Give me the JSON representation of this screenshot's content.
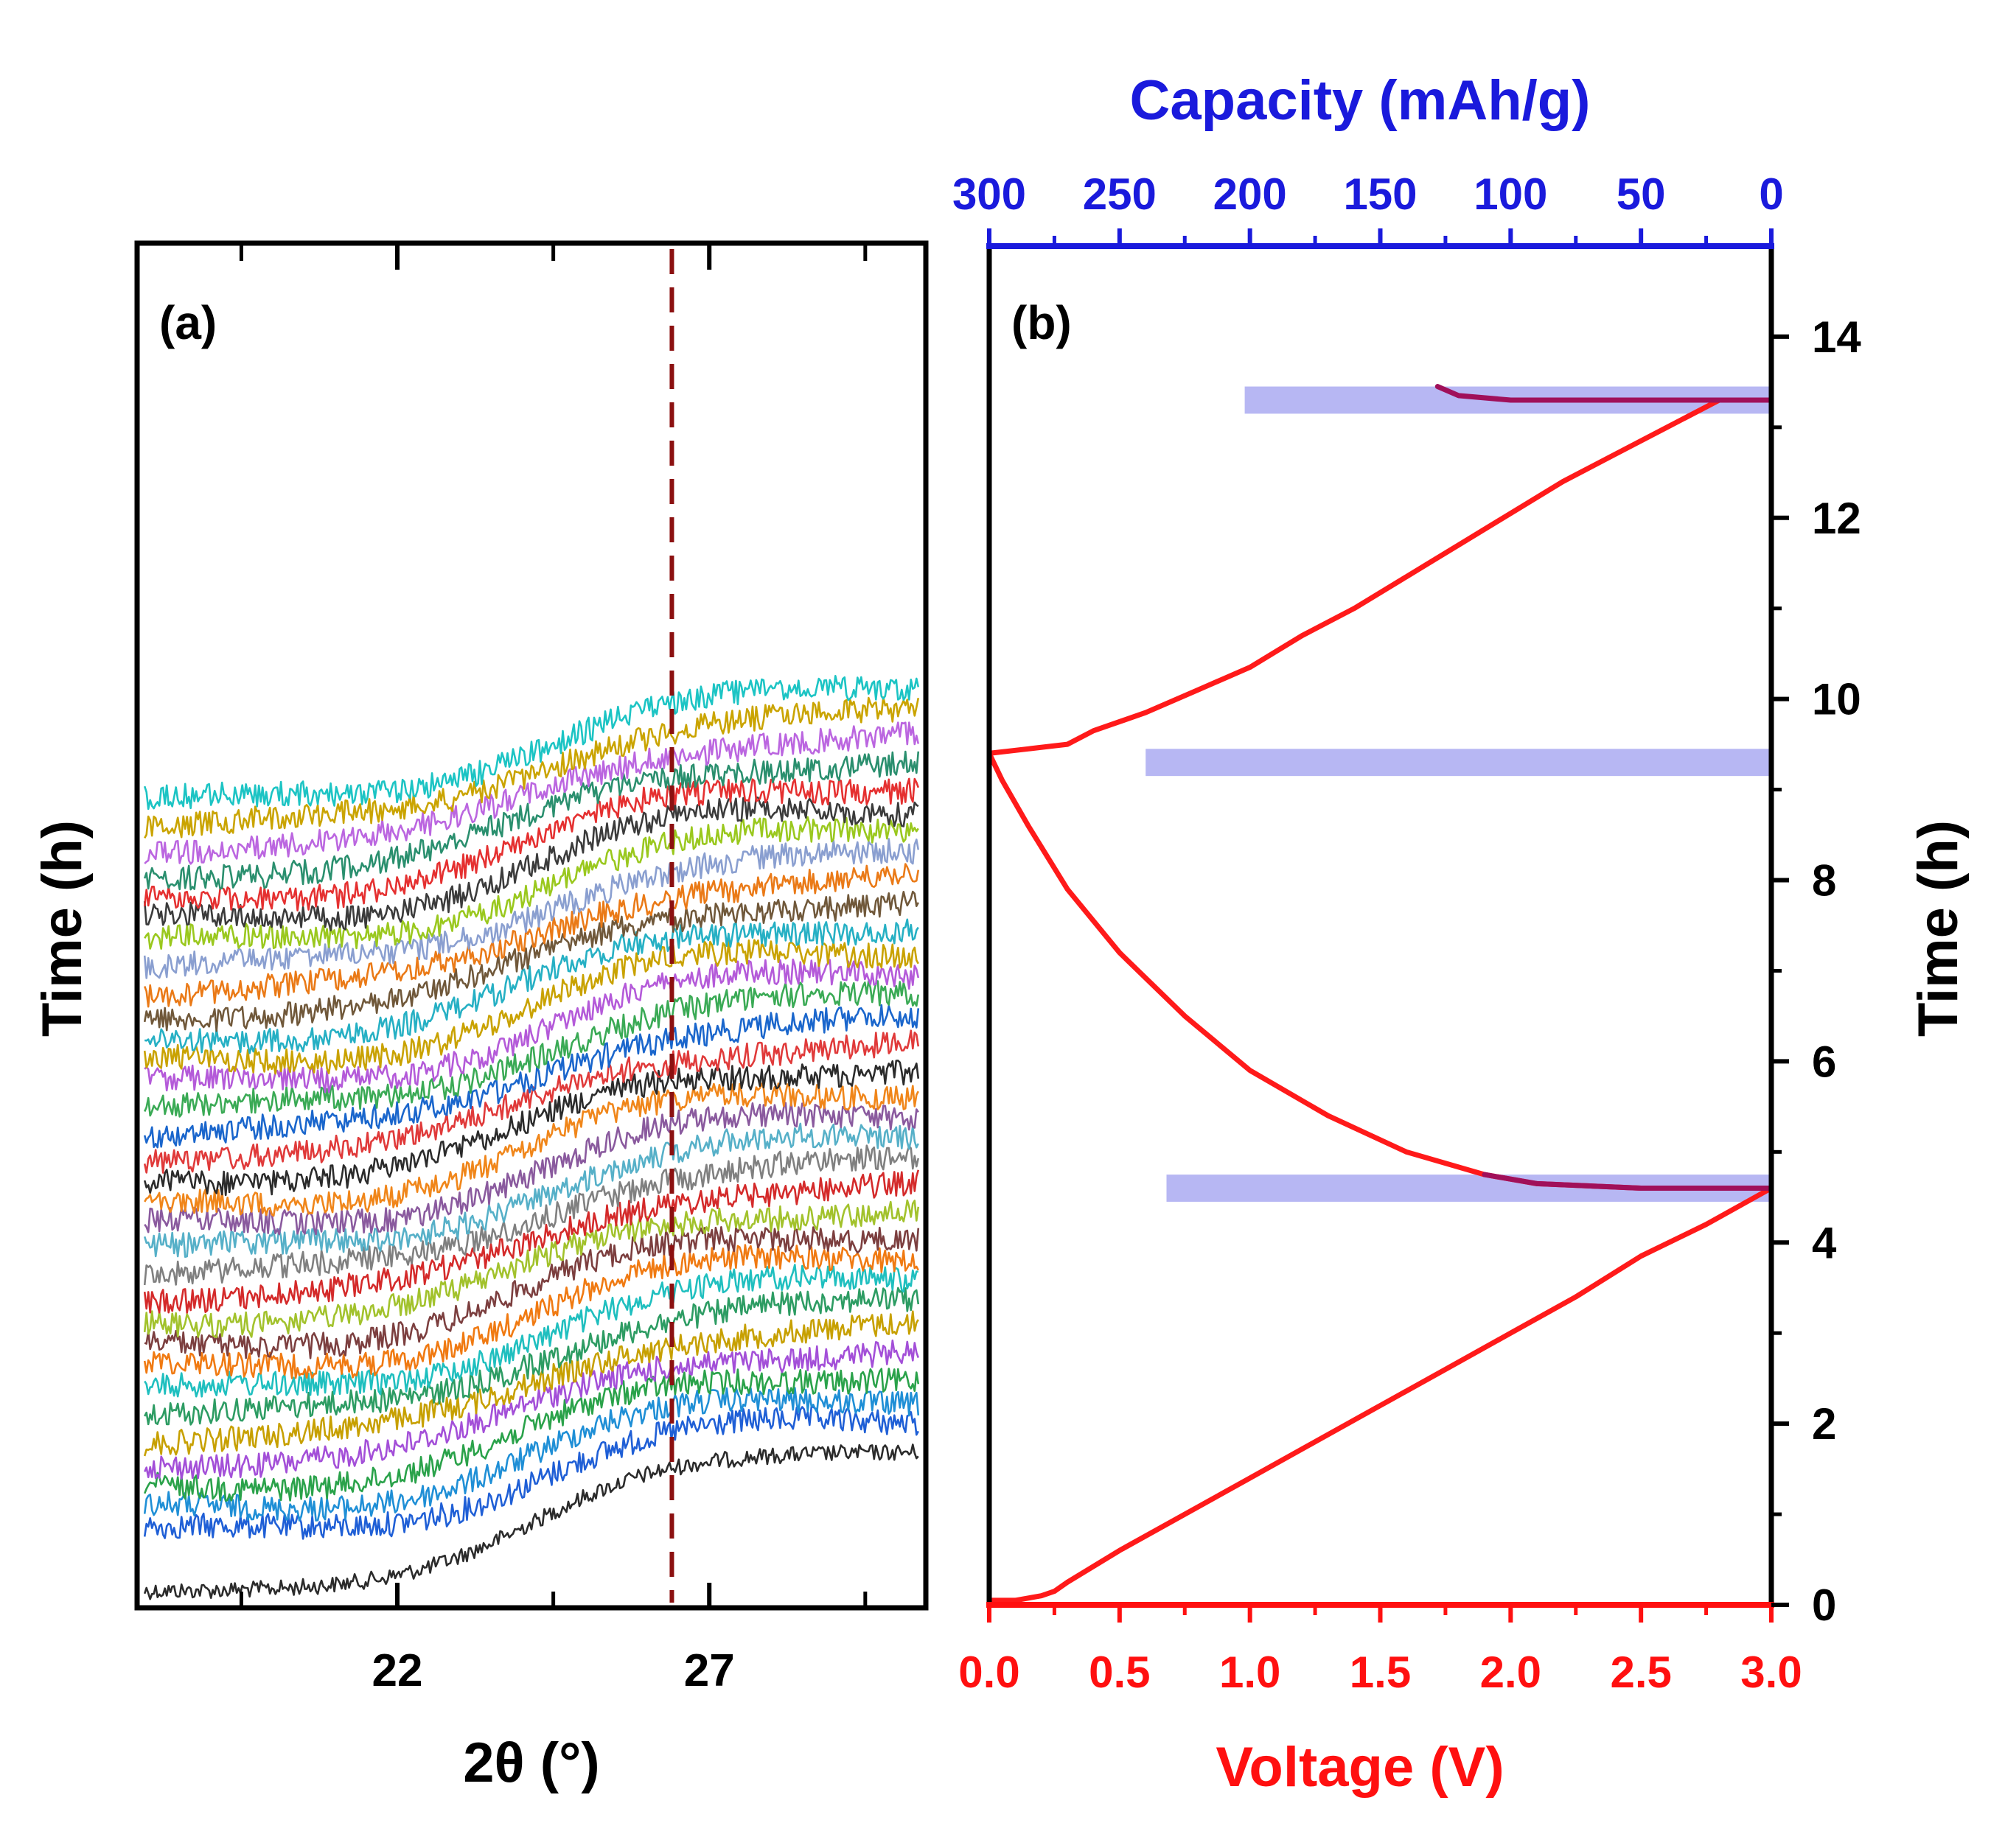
{
  "colors": {
    "axis": "#000000",
    "capacity_axis": "#1a1adc",
    "voltage_axis": "#ff1010",
    "voltage_curve": "#ff1a1a",
    "voltage_curve_hold": "#a0105a",
    "highlight_band": "#b7b7f3",
    "dashed_line": "#8b1010"
  },
  "chart_data": [
    {
      "panel_label": "(a)",
      "type": "line",
      "title": "",
      "xlabel": "2θ (°)",
      "ylabel": "Time (h)",
      "xlim": [
        17.9,
        30.4
      ],
      "xticks": [
        22,
        27
      ],
      "xticklabels": [
        "22",
        "27"
      ],
      "minor_xticks": [
        19.5,
        24.5,
        29.5
      ],
      "dashed_reference_x": 26.4,
      "series_description": "stacked in-situ XRD patterns, bottom to top in time order",
      "series_colors": [
        "#2b2b2b",
        "#1f5fd6",
        "#1f8fd6",
        "#2aa24a",
        "#a34fd8",
        "#c7a000",
        "#2d9c63",
        "#1fbfbf",
        "#f07a12",
        "#7c3f3f",
        "#a2c22c",
        "#d42a2a",
        "#808080",
        "#56b0c8",
        "#8a5a9e",
        "#f0861a",
        "#2b2b2b",
        "#e03a3a",
        "#1a66cc",
        "#3aaa55",
        "#b45ad9",
        "#c9a200",
        "#26b0c4",
        "#70583a",
        "#ea7a17",
        "#8a9fd0",
        "#9ac81e",
        "#3b3b3b",
        "#e53030",
        "#2a8f6e",
        "#bb66e0",
        "#caa400",
        "#1cc4c4"
      ],
      "series_count": 33,
      "shape": {
        "baseline_low_at": 18.5,
        "rise_center": 24.2,
        "peak_region": [
          25.5,
          27.5
        ],
        "noise": "high"
      }
    },
    {
      "panel_label": "(b)",
      "type": "line",
      "xlabel": "Voltage (V)",
      "x2label": "Capacity (mAh/g)",
      "ylabel": "Time (h)",
      "xlim": [
        0.0,
        3.0
      ],
      "xticks": [
        0.0,
        0.5,
        1.0,
        1.5,
        2.0,
        2.5,
        3.0
      ],
      "xticklabels": [
        "0.0",
        "0.5",
        "1.0",
        "1.5",
        "2.0",
        "2.5",
        "3.0"
      ],
      "x2lim": [
        300,
        0
      ],
      "x2ticks": [
        300,
        250,
        200,
        150,
        100,
        50,
        0
      ],
      "x2ticklabels": [
        "300",
        "250",
        "200",
        "150",
        "100",
        "50",
        "0"
      ],
      "ylim": [
        0,
        15
      ],
      "yticks": [
        0,
        2,
        4,
        6,
        8,
        10,
        12,
        14
      ],
      "yticklabels": [
        "0",
        "2",
        "4",
        "6",
        "8",
        "10",
        "12",
        "14"
      ],
      "series": [
        {
          "name": "voltage profile",
          "x": [
            0.0,
            0.1,
            0.2,
            0.25,
            0.3,
            0.5,
            0.75,
            1.0,
            1.25,
            1.5,
            1.75,
            2.0,
            2.25,
            2.5,
            2.75,
            3.0,
            2.5,
            2.1,
            1.9,
            1.6,
            1.3,
            1.0,
            0.75,
            0.5,
            0.3,
            0.15,
            0.05,
            0.0,
            0.15,
            0.3,
            0.4,
            0.6,
            0.8,
            1.0,
            1.2,
            1.4,
            1.6,
            1.8,
            2.0,
            2.2,
            2.4,
            2.6,
            2.8,
            3.0
          ],
          "y": [
            0.05,
            0.05,
            0.1,
            0.15,
            0.25,
            0.6,
            1.0,
            1.4,
            1.8,
            2.2,
            2.6,
            3.0,
            3.4,
            3.85,
            4.2,
            4.6,
            4.6,
            4.65,
            4.75,
            5.0,
            5.4,
            5.9,
            6.5,
            7.2,
            7.9,
            8.6,
            9.1,
            9.4,
            9.45,
            9.5,
            9.65,
            9.85,
            10.1,
            10.35,
            10.7,
            11.0,
            11.35,
            11.7,
            12.05,
            12.4,
            12.7,
            13.0,
            13.3,
            13.3
          ]
        },
        {
          "name": "hold segment",
          "x": [
            1.9,
            2.1,
            2.5,
            3.0,
            3.0,
            2.5,
            2.0,
            1.8,
            1.72
          ],
          "y": [
            4.75,
            4.65,
            4.6,
            4.6,
            13.3,
            13.3,
            13.3,
            13.35,
            13.45
          ]
        }
      ],
      "highlight_bands": [
        {
          "x_start": 0.68,
          "x_end": 3.0,
          "y_center": 4.6,
          "height": 0.3
        },
        {
          "x_start": 0.6,
          "x_end": 3.0,
          "y_center": 9.3,
          "height": 0.3
        },
        {
          "x_start": 0.98,
          "x_end": 3.0,
          "y_center": 13.3,
          "height": 0.3
        }
      ]
    }
  ]
}
